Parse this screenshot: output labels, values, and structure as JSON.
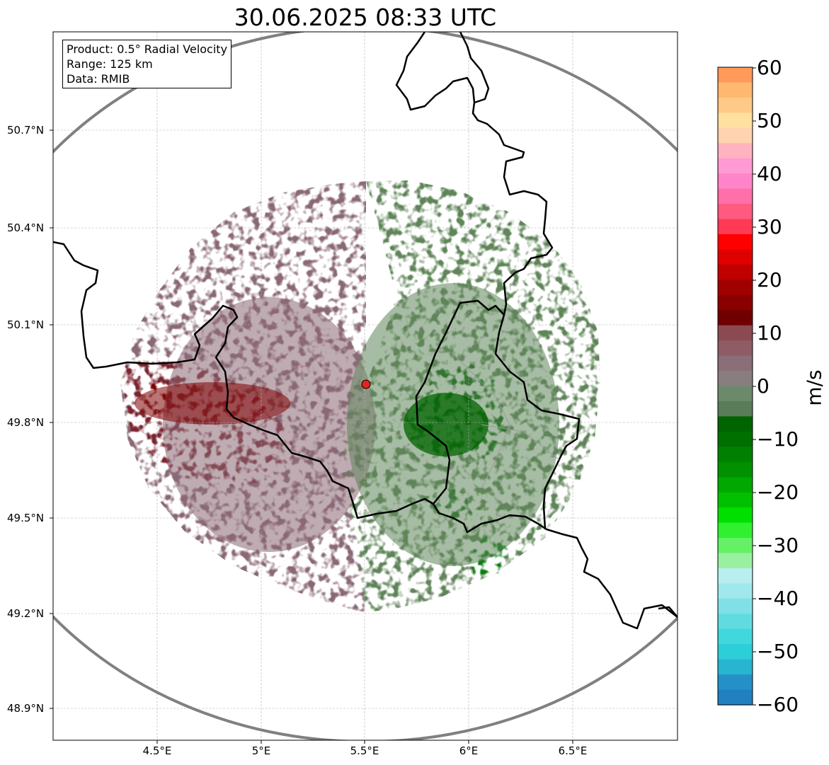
{
  "title": "30.06.2025 08:33 UTC",
  "info": {
    "product": "Product: 0.5° Radial Velocity",
    "range": "Range: 125 km",
    "source": "Data: RMIB"
  },
  "map": {
    "lat_ticks": [
      "50.7°N",
      "50.4°N",
      "50.1°N",
      "49.8°N",
      "49.5°N",
      "49.2°N",
      "48.9°N"
    ],
    "lon_ticks": [
      "4.5°E",
      "5°E",
      "5.5°E",
      "6°E",
      "6.5°E"
    ],
    "extent": {
      "lon": [
        4.0,
        7.0
      ],
      "lat": [
        48.8,
        50.99
      ]
    },
    "radar_site": {
      "lon": 5.505,
      "lat": 49.914
    },
    "range_ring_km": 125,
    "colors": {
      "inbound_strong": "#006400",
      "inbound": "#5f8559",
      "outbound": "#8a6874",
      "outbound_strong": "#800000",
      "border": "#000000",
      "ring": "#808080",
      "site": "#e8221a"
    }
  },
  "colorbar": {
    "label": "m/s",
    "range": [
      -60,
      60
    ],
    "ticks": [
      "60",
      "50",
      "40",
      "30",
      "20",
      "10",
      "0",
      "−10",
      "−20",
      "−30",
      "−40",
      "−50",
      "−60"
    ],
    "palette_top_to_bottom": [
      "#ff9a5a",
      "#ffb870",
      "#ffc987",
      "#ffe0a0",
      "#ffd2b0",
      "#ffb3c1",
      "#ff9ad4",
      "#ff85c8",
      "#ff6fa8",
      "#ff5a80",
      "#ff3a55",
      "#ff0000",
      "#e00000",
      "#c00000",
      "#a00000",
      "#8a0000",
      "#700000",
      "#8b4a52",
      "#8f5c66",
      "#8a6e78",
      "#887e80",
      "#6b8a6b",
      "#5a7c58",
      "#006400",
      "#007000",
      "#008000",
      "#009000",
      "#00a800",
      "#00c000",
      "#00e000",
      "#30f030",
      "#66f066",
      "#99f0a0",
      "#b8eef0",
      "#a0e8ec",
      "#80e0e6",
      "#60dce0",
      "#40d8dc",
      "#2ccfd8",
      "#28b5d0",
      "#2590c8",
      "#2080c0"
    ]
  }
}
